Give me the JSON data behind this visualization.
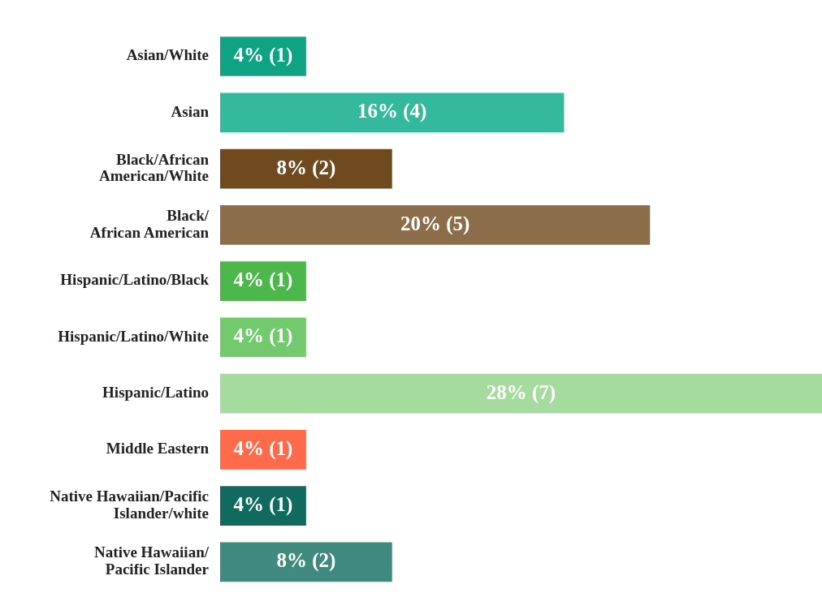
{
  "chart_data": {
    "type": "bar",
    "orientation": "horizontal",
    "categories": [
      "Asian/White",
      "Asian",
      "Black/African\nAmerican/White",
      "Black/\nAfrican American",
      "Hispanic/Latino/Black",
      "Hispanic/Latino/White",
      "Hispanic/Latino",
      "Middle Eastern",
      "Native Hawaiian/Pacific\nIslander/white",
      "Native Hawaiian/\nPacific Islander"
    ],
    "values": [
      4,
      16,
      8,
      20,
      4,
      4,
      28,
      4,
      4,
      8
    ],
    "value_labels": [
      "4% (1)",
      "16% (4)",
      "8% (2)",
      "20% (5)",
      "4% (1)",
      "4% (1)",
      "28% (7)",
      "4% (1)",
      "4% (1)",
      "8% (2)"
    ],
    "colors": [
      "#0fa383",
      "#35b99c",
      "#6f4a1f",
      "#8b6d4a",
      "#4cb84c",
      "#73c96d",
      "#a6dba0",
      "#ff6b4a",
      "#116a5e",
      "#3f897e"
    ],
    "grid": false,
    "legend": false
  }
}
